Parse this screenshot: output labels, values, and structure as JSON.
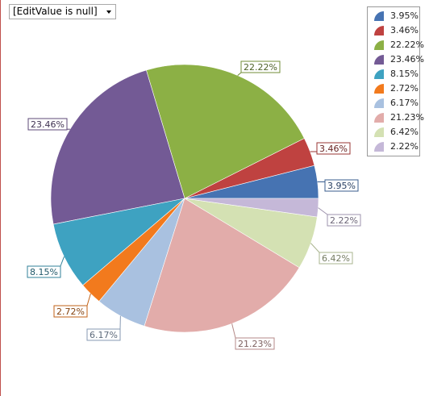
{
  "dropdown": {
    "value": "[EditValue is null]"
  },
  "chart_data": {
    "type": "pie",
    "slices": [
      {
        "label": "3.95%",
        "value": 3.95,
        "color": "#4673b2"
      },
      {
        "label": "3.46%",
        "value": 3.46,
        "color": "#bf4240"
      },
      {
        "label": "22.22%",
        "value": 22.22,
        "color": "#8cb045"
      },
      {
        "label": "23.46%",
        "value": 23.46,
        "color": "#735a95"
      },
      {
        "label": "8.15%",
        "value": 8.15,
        "color": "#3ea2c1"
      },
      {
        "label": "2.72%",
        "value": 2.72,
        "color": "#f27a1d"
      },
      {
        "label": "6.17%",
        "value": 6.17,
        "color": "#a9c1e0"
      },
      {
        "label": "21.23%",
        "value": 21.23,
        "color": "#e2acaa"
      },
      {
        "label": "6.42%",
        "value": 6.42,
        "color": "#d4e1b3"
      },
      {
        "label": "2.22%",
        "value": 2.22,
        "color": "#c5b8d8"
      }
    ],
    "legend": {
      "position": "top-right",
      "entries": [
        "3.95%",
        "3.46%",
        "22.22%",
        "23.46%",
        "8.15%",
        "2.72%",
        "6.17%",
        "21.23%",
        "6.42%",
        "2.22%"
      ]
    }
  }
}
